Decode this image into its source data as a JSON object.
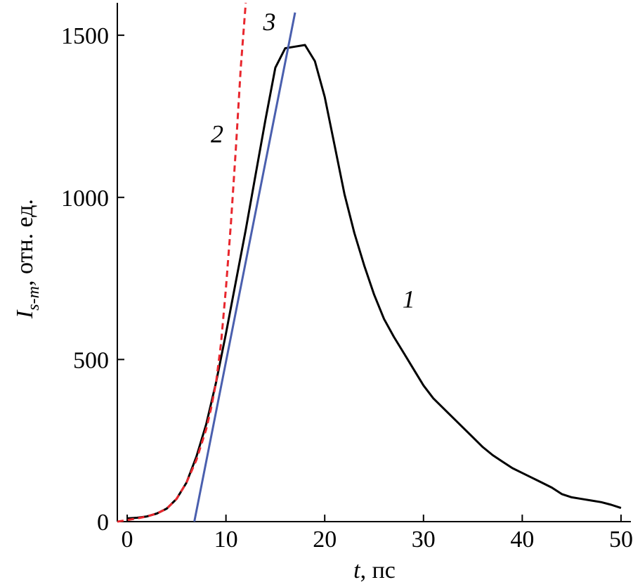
{
  "chart_data": {
    "type": "line",
    "xlabel": {
      "var": "t",
      "rest": ", пс"
    },
    "ylabel": {
      "var": "I",
      "sub": "s-m",
      "rest": ", отн. ед."
    },
    "xlim": [
      -1,
      51
    ],
    "ylim": [
      0,
      1600
    ],
    "xticks": [
      0,
      10,
      20,
      30,
      40,
      50
    ],
    "yticks": [
      0,
      500,
      1000,
      1500
    ],
    "grid": false,
    "series": [
      {
        "name": "1",
        "style": "solid",
        "color": "#000000",
        "x": [
          0,
          1,
          2,
          3,
          4,
          5,
          6,
          7,
          8,
          9,
          10,
          11,
          12,
          13,
          14,
          15,
          16,
          17,
          18,
          19,
          20,
          21,
          22,
          23,
          24,
          25,
          26,
          27,
          28,
          29,
          30,
          31,
          32,
          33,
          34,
          35,
          36,
          37,
          38,
          39,
          40,
          41,
          42,
          43,
          44,
          45,
          46,
          47,
          48,
          49,
          50
        ],
        "y": [
          10,
          12,
          16,
          25,
          40,
          70,
          120,
          200,
          300,
          430,
          580,
          740,
          900,
          1070,
          1240,
          1400,
          1460,
          1465,
          1470,
          1420,
          1310,
          1160,
          1010,
          890,
          790,
          700,
          625,
          570,
          520,
          470,
          420,
          380,
          350,
          320,
          290,
          260,
          230,
          205,
          185,
          165,
          150,
          135,
          120,
          105,
          85,
          75,
          70,
          65,
          60,
          52,
          42
        ]
      },
      {
        "name": "2",
        "style": "dashed",
        "color": "#e8262d",
        "x": [
          -1,
          0,
          1,
          2,
          3,
          4,
          5,
          6,
          7,
          8,
          8.5,
          9,
          9.5,
          10,
          10.5,
          11,
          11.5,
          12
        ],
        "y": [
          0,
          5,
          10,
          16,
          25,
          40,
          70,
          120,
          190,
          285,
          350,
          430,
          550,
          720,
          920,
          1150,
          1400,
          1600
        ]
      },
      {
        "name": "3",
        "style": "solid",
        "color": "#4a5fae",
        "x": [
          6.8,
          17
        ],
        "y": [
          0,
          1570
        ]
      }
    ],
    "annotations": [
      {
        "text": "1",
        "x": 28.5,
        "y": 660
      },
      {
        "text": "2",
        "x": 9.1,
        "y": 1170
      },
      {
        "text": "3",
        "x": 14.4,
        "y": 1515
      }
    ]
  }
}
